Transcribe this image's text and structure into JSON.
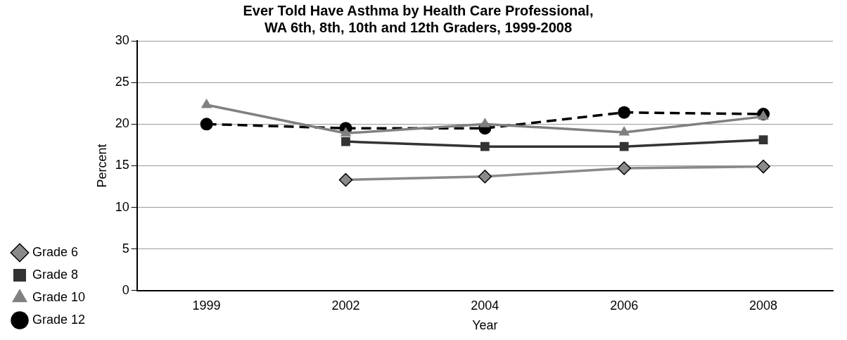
{
  "chart_data": {
    "type": "line",
    "title": [
      "Ever Told Have Asthma by Health Care Professional,",
      "WA 6th, 8th, 10th and 12th Graders, 1999-2008"
    ],
    "xlabel": "Year",
    "ylabel": "Percent",
    "categories": [
      "1999",
      "2002",
      "2004",
      "2006",
      "2008"
    ],
    "series": [
      {
        "name": "Grade 6",
        "color": "#8a8a8a",
        "marker": "diamond",
        "line_style": "solid",
        "values": [
          null,
          13.3,
          13.7,
          14.7,
          14.9
        ]
      },
      {
        "name": "Grade 8",
        "color": "#333333",
        "marker": "square",
        "line_style": "solid",
        "values": [
          null,
          17.9,
          17.3,
          17.3,
          18.1
        ]
      },
      {
        "name": "Grade 10",
        "color": "#808080",
        "marker": "triangle",
        "line_style": "solid",
        "values": [
          22.3,
          18.9,
          20.0,
          19.0,
          20.9
        ]
      },
      {
        "name": "Grade 12",
        "color": "#000000",
        "marker": "circle",
        "line_style": "dashed",
        "values": [
          20.0,
          19.5,
          19.5,
          21.4,
          21.2
        ]
      }
    ],
    "ylim": [
      0,
      30
    ],
    "yticks": [
      0,
      5,
      10,
      15,
      20,
      25,
      30
    ],
    "grid": "y",
    "legend": "bottom left"
  }
}
